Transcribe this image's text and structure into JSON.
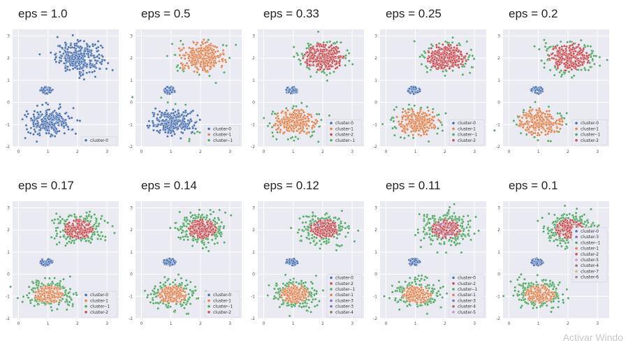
{
  "colors": {
    "cluster-0": "#4c72b0",
    "cluster-1": "#dd8452",
    "cluster--1": "#55a868",
    "cluster-2": "#c44e52",
    "cluster-3": "#8172b3",
    "cluster-4": "#937860",
    "cluster-5": "#da8bc3",
    "cluster-6": "#8c8c8c",
    "cluster-7": "#ccb974"
  },
  "watermark": "Activar Windo",
  "chart_data": [
    {
      "type": "scatter",
      "title": "eps = 1.0",
      "xlim": [
        -0.2,
        3.4
      ],
      "ylim": [
        -2,
        3.3
      ],
      "xticks": [
        "0",
        "1",
        "2",
        "3"
      ],
      "yticks": [
        "-2",
        "-1",
        "0",
        "1",
        "2",
        "3"
      ],
      "grid": true,
      "legend_position": "lower-right",
      "legend": [
        "cluster-0"
      ],
      "clusters": {
        "top": "cluster-0",
        "small": "cluster-0",
        "bottom": "cluster-0"
      }
    },
    {
      "type": "scatter",
      "title": "eps = 0.5",
      "xlim": [
        -0.2,
        3.4
      ],
      "ylim": [
        -2,
        3.3
      ],
      "xticks": [
        "0",
        "1",
        "2",
        "3"
      ],
      "yticks": [
        "-2",
        "-1",
        "0",
        "1",
        "2",
        "3"
      ],
      "grid": true,
      "legend_position": "lower-right",
      "legend": [
        "cluster-0",
        "cluster-1",
        "cluster--1"
      ],
      "clusters": {
        "top": "cluster-1",
        "small": "cluster-0",
        "bottom": "cluster-0",
        "outliers": "cluster--1"
      }
    },
    {
      "type": "scatter",
      "title": "eps = 0.33",
      "xlim": [
        -0.2,
        3.4
      ],
      "ylim": [
        -2,
        3.3
      ],
      "xticks": [
        "0",
        "1",
        "2",
        "3"
      ],
      "yticks": [
        "-2",
        "-1",
        "0",
        "1",
        "2",
        "3"
      ],
      "grid": true,
      "legend_position": "lower-right",
      "legend": [
        "cluster-0",
        "cluster-1",
        "cluster-2",
        "cluster--1"
      ],
      "clusters": {
        "top": "cluster-2",
        "small": "cluster-0",
        "bottom": "cluster-1",
        "outliers": "cluster--1"
      }
    },
    {
      "type": "scatter",
      "title": "eps = 0.25",
      "xlim": [
        -0.2,
        3.4
      ],
      "ylim": [
        -2,
        3.3
      ],
      "xticks": [
        "0",
        "1",
        "2",
        "3"
      ],
      "yticks": [
        "-2",
        "-1",
        "0",
        "1",
        "2",
        "3"
      ],
      "grid": true,
      "legend_position": "lower-right",
      "legend": [
        "cluster-0",
        "cluster-1",
        "cluster--1",
        "cluster-2"
      ],
      "clusters": {
        "top": "cluster-2",
        "small": "cluster-0",
        "bottom": "cluster-1",
        "outliers": "cluster--1"
      }
    },
    {
      "type": "scatter",
      "title": "eps = 0.2",
      "xlim": [
        -0.2,
        3.4
      ],
      "ylim": [
        -2,
        3.3
      ],
      "xticks": [
        "0",
        "1",
        "2",
        "3"
      ],
      "yticks": [
        "-2",
        "-1",
        "0",
        "1",
        "2",
        "3"
      ],
      "grid": true,
      "legend_position": "lower-right",
      "legend": [
        "cluster-0",
        "cluster-1",
        "cluster--1",
        "cluster-2"
      ],
      "clusters": {
        "top": "cluster-2",
        "small": "cluster-0",
        "bottom": "cluster-1",
        "outliers": "cluster--1"
      }
    },
    {
      "type": "scatter",
      "title": "eps = 0.17",
      "xlim": [
        -0.2,
        3.4
      ],
      "ylim": [
        -2,
        3.3
      ],
      "xticks": [
        "0",
        "1",
        "2",
        "3"
      ],
      "yticks": [
        "-2",
        "-1",
        "0",
        "1",
        "2",
        "3"
      ],
      "grid": true,
      "legend_position": "lower-right",
      "legend": [
        "cluster-0",
        "cluster-1",
        "cluster--1",
        "cluster-2"
      ],
      "clusters": {
        "top": "cluster-2",
        "small": "cluster-0",
        "bottom": "cluster-1",
        "outliers": "cluster--1"
      }
    },
    {
      "type": "scatter",
      "title": "eps = 0.14",
      "xlim": [
        -0.2,
        3.4
      ],
      "ylim": [
        -2,
        3.3
      ],
      "xticks": [
        "0",
        "1",
        "2",
        "3"
      ],
      "yticks": [
        "-2",
        "-1",
        "0",
        "1",
        "2",
        "3"
      ],
      "grid": true,
      "legend_position": "lower-right",
      "legend": [
        "cluster-0",
        "cluster-1",
        "cluster--1",
        "cluster-2"
      ],
      "clusters": {
        "top": "cluster-2",
        "small": "cluster-0",
        "bottom": "cluster-1",
        "outliers": "cluster--1"
      }
    },
    {
      "type": "scatter",
      "title": "eps = 0.12",
      "xlim": [
        -0.2,
        3.4
      ],
      "ylim": [
        -2,
        3.3
      ],
      "xticks": [
        "0",
        "1",
        "2",
        "3"
      ],
      "yticks": [
        "-2",
        "-1",
        "0",
        "1",
        "2",
        "3"
      ],
      "grid": true,
      "legend_position": "lower-right",
      "legend": [
        "cluster-0",
        "cluster-2",
        "cluster--1",
        "cluster-1",
        "cluster-3",
        "cluster-3",
        "cluster-4"
      ],
      "clusters": {
        "top": "cluster-2",
        "small": "cluster-0",
        "bottom": "cluster-1",
        "outliers": "cluster--1",
        "extras": [
          "cluster-3",
          "cluster-4"
        ]
      }
    },
    {
      "type": "scatter",
      "title": "eps = 0.11",
      "xlim": [
        -0.2,
        3.4
      ],
      "ylim": [
        -2,
        3.3
      ],
      "xticks": [
        "0",
        "1",
        "2",
        "3"
      ],
      "yticks": [
        "-2",
        "-1",
        "0",
        "1",
        "2",
        "3"
      ],
      "grid": true,
      "legend_position": "lower-right",
      "legend": [
        "cluster-0",
        "cluster-2",
        "cluster--1",
        "cluster-1",
        "cluster-3",
        "cluster-4",
        "cluster-5"
      ],
      "clusters": {
        "top": "cluster-2",
        "small": "cluster-0",
        "bottom": "cluster-1",
        "outliers": "cluster--1",
        "extras": [
          "cluster-3",
          "cluster-5"
        ]
      }
    },
    {
      "type": "scatter",
      "title": "eps = 0.1",
      "xlim": [
        -0.2,
        3.4
      ],
      "ylim": [
        -2,
        3.3
      ],
      "xticks": [
        "0",
        "1",
        "2",
        "3"
      ],
      "yticks": [
        "-2",
        "-1",
        "0",
        "1",
        "2",
        "3"
      ],
      "grid": true,
      "legend_position": "right",
      "legend": [
        "cluster-0",
        "cluster-3",
        "cluster--1",
        "cluster-1",
        "cluster-2",
        "cluster-5",
        "cluster-4",
        "cluster-7",
        "cluster-6"
      ],
      "clusters": {
        "top": "cluster-2",
        "small": "cluster-0",
        "bottom": "cluster-1",
        "outliers": "cluster--1",
        "extras": [
          "cluster-3",
          "cluster-5",
          "cluster-7",
          "cluster-6",
          "cluster-4"
        ]
      }
    }
  ]
}
